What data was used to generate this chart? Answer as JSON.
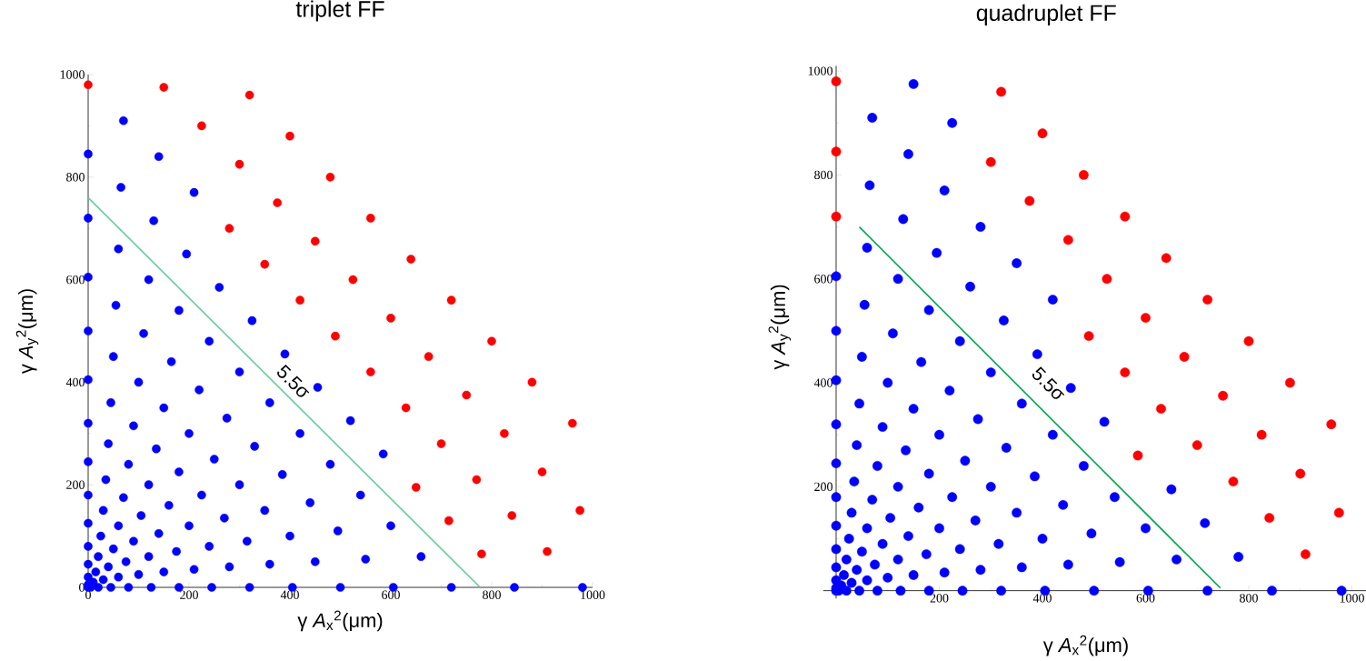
{
  "chart_data": [
    {
      "type": "scatter",
      "title": "triplet FF",
      "xlabel": "γ *A*$_{x}$$^{2}$(μm)",
      "ylabel": "γ *A*$_{y}$$^{2}$(μm)",
      "xlim": [
        0,
        1000
      ],
      "ylim": [
        0,
        1000
      ],
      "xticks": [
        0,
        200,
        400,
        600,
        800,
        1000
      ],
      "yticks": [
        0,
        200,
        400,
        600,
        800,
        1000
      ],
      "series": [
        {
          "color": "#0000ff",
          "marker": "circle",
          "x": [
            0,
            0,
            5,
            0,
            10,
            20,
            0,
            15,
            30,
            45,
            0,
            20,
            40,
            60,
            80,
            0,
            25,
            50,
            75,
            100,
            125,
            0,
            30,
            60,
            90,
            120,
            150,
            180,
            0,
            35,
            70,
            105,
            140,
            175,
            210,
            245,
            0,
            40,
            80,
            120,
            160,
            200,
            240,
            280,
            320,
            0,
            45,
            90,
            135,
            180,
            225,
            270,
            315,
            360,
            405,
            0,
            50,
            100,
            150,
            200,
            250,
            300,
            350,
            400,
            450,
            500,
            0,
            55,
            110,
            165,
            220,
            275,
            330,
            385,
            440,
            495,
            550,
            605,
            0,
            60,
            120,
            180,
            240,
            300,
            360,
            420,
            480,
            540,
            600,
            660,
            720,
            0,
            65,
            130,
            195,
            260,
            325,
            390,
            455,
            520,
            585,
            845,
            70,
            140,
            210,
            980
          ],
          "values": [
            0,
            5,
            0,
            20,
            10,
            0,
            45,
            30,
            15,
            0,
            80,
            60,
            40,
            20,
            0,
            125,
            100,
            75,
            50,
            25,
            0,
            180,
            150,
            120,
            90,
            60,
            30,
            0,
            245,
            210,
            175,
            140,
            105,
            70,
            35,
            0,
            320,
            280,
            240,
            200,
            160,
            120,
            80,
            40,
            0,
            405,
            360,
            315,
            270,
            225,
            180,
            135,
            90,
            45,
            0,
            500,
            450,
            400,
            350,
            300,
            250,
            200,
            150,
            100,
            50,
            0,
            605,
            550,
            495,
            440,
            385,
            330,
            275,
            220,
            165,
            110,
            55,
            0,
            720,
            660,
            600,
            540,
            480,
            420,
            360,
            300,
            240,
            180,
            120,
            60,
            0,
            845,
            780,
            715,
            650,
            585,
            520,
            455,
            390,
            325,
            260,
            0,
            910,
            840,
            770,
            0
          ]
        },
        {
          "color": "#ff0000",
          "marker": "circle",
          "x": [
            650,
            715,
            780,
            0,
            280,
            350,
            420,
            490,
            560,
            630,
            700,
            770,
            840,
            910,
            150,
            225,
            300,
            375,
            450,
            525,
            600,
            675,
            750,
            825,
            900,
            975,
            320,
            400,
            480,
            560,
            640,
            720,
            800,
            880,
            960
          ],
          "values": [
            195,
            130,
            65,
            980,
            700,
            630,
            560,
            490,
            420,
            350,
            280,
            210,
            140,
            70,
            975,
            900,
            825,
            750,
            675,
            600,
            525,
            450,
            375,
            300,
            225,
            150,
            960,
            880,
            800,
            720,
            640,
            560,
            480,
            400,
            320
          ]
        },
        {
          "type": "line",
          "color": "#66cc99",
          "x": [
            0,
            777
          ],
          "values": [
            760,
            0
          ]
        }
      ],
      "annotations": [
        "5.5σ"
      ]
    },
    {
      "type": "scatter",
      "title": "quadruplet FF",
      "xlabel": "γ *A*$_{x}$$^{2}$(μm)",
      "ylabel": "γ *A*$_{y}$$^{2}$(μm)",
      "xlim": [
        -25,
        1030
      ],
      "ylim": [
        -15,
        1010
      ],
      "xticks": [
        200,
        400,
        600,
        800,
        1000
      ],
      "yticks": [
        200,
        400,
        600,
        800,
        1000
      ],
      "series": [
        {
          "color": "#0000ff",
          "marker": "circle",
          "x": [
            0,
            0,
            5,
            0,
            10,
            20,
            0,
            15,
            30,
            45,
            0,
            20,
            40,
            60,
            80,
            0,
            25,
            50,
            75,
            100,
            125,
            0,
            30,
            60,
            90,
            120,
            150,
            180,
            0,
            35,
            70,
            105,
            140,
            175,
            210,
            245,
            0,
            40,
            80,
            120,
            160,
            200,
            240,
            280,
            320,
            0,
            45,
            90,
            135,
            180,
            225,
            270,
            315,
            360,
            405,
            0,
            50,
            100,
            150,
            200,
            250,
            300,
            350,
            400,
            450,
            500,
            0,
            55,
            110,
            165,
            220,
            275,
            330,
            385,
            440,
            495,
            550,
            605,
            60,
            120,
            180,
            240,
            300,
            360,
            420,
            480,
            540,
            600,
            660,
            720,
            65,
            130,
            195,
            260,
            325,
            390,
            455,
            520,
            650,
            715,
            780,
            845,
            70,
            140,
            210,
            280,
            350,
            420,
            980,
            150,
            225
          ],
          "values": [
            0,
            5,
            0,
            20,
            10,
            0,
            45,
            30,
            15,
            0,
            80,
            60,
            40,
            20,
            0,
            125,
            100,
            75,
            50,
            25,
            0,
            180,
            150,
            120,
            90,
            60,
            30,
            0,
            245,
            210,
            175,
            140,
            105,
            70,
            35,
            0,
            320,
            280,
            240,
            200,
            160,
            120,
            80,
            40,
            0,
            405,
            360,
            315,
            270,
            225,
            180,
            135,
            90,
            45,
            0,
            500,
            450,
            400,
            350,
            300,
            250,
            200,
            150,
            100,
            50,
            0,
            605,
            550,
            495,
            440,
            385,
            330,
            275,
            220,
            165,
            110,
            55,
            0,
            660,
            600,
            540,
            480,
            420,
            360,
            300,
            240,
            180,
            120,
            60,
            0,
            780,
            715,
            650,
            585,
            520,
            455,
            390,
            325,
            195,
            130,
            65,
            0,
            910,
            840,
            770,
            700,
            630,
            560,
            0,
            975,
            900
          ]
        },
        {
          "color": "#ff0000",
          "marker": "circle",
          "x": [
            0,
            0,
            585,
            0,
            490,
            560,
            630,
            700,
            770,
            840,
            910,
            300,
            375,
            450,
            525,
            600,
            675,
            750,
            825,
            900,
            975,
            320,
            400,
            480,
            560,
            640,
            720,
            800,
            880,
            960
          ],
          "values": [
            720,
            845,
            260,
            980,
            490,
            420,
            350,
            280,
            210,
            140,
            70,
            825,
            750,
            675,
            600,
            525,
            450,
            375,
            300,
            225,
            150,
            960,
            880,
            800,
            720,
            640,
            560,
            480,
            400,
            320
          ]
        },
        {
          "type": "line",
          "color": "#00a550",
          "x": [
            45,
            745
          ],
          "values": [
            700,
            5
          ]
        }
      ],
      "annotations": [
        "5.5σ"
      ]
    }
  ]
}
